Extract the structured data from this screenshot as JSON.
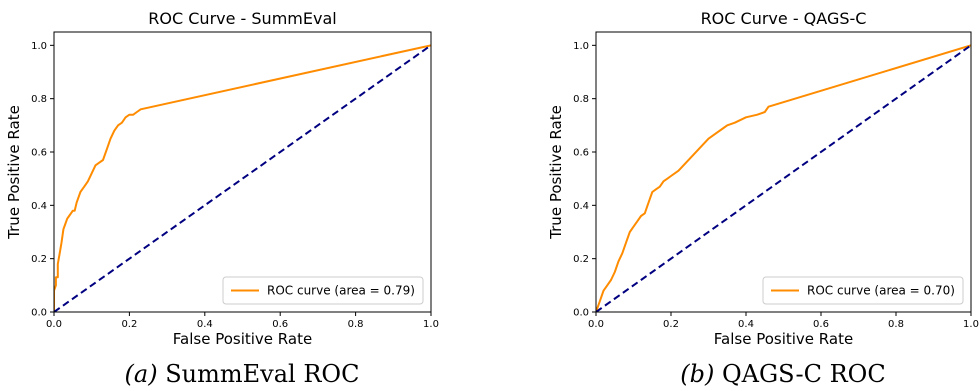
{
  "chart_data": [
    {
      "type": "line",
      "title": "ROC Curve - SummEval",
      "xlabel": "False Positive Rate",
      "ylabel": "True Positive Rate",
      "xlim": [
        0.0,
        1.0
      ],
      "ylim": [
        0.0,
        1.05
      ],
      "xticks": [
        "0.0",
        "0.2",
        "0.4",
        "0.6",
        "0.8",
        "1.0"
      ],
      "yticks": [
        "0.0",
        "0.2",
        "0.4",
        "0.6",
        "0.8",
        "1.0"
      ],
      "legend": {
        "position": "lower-right",
        "entry": "ROC curve (area = 0.79)"
      },
      "grid": false,
      "caption_letter": "(a)",
      "caption_text": "SummEval ROC",
      "colors": {
        "roc": "#ff8c00",
        "diagonal": "#000080"
      },
      "series": [
        {
          "name": "ROC curve (area = 0.79)",
          "style": "solid",
          "x": [
            0.0,
            0.0,
            0.005,
            0.005,
            0.01,
            0.01,
            0.015,
            0.02,
            0.025,
            0.03,
            0.035,
            0.04,
            0.045,
            0.05,
            0.055,
            0.06,
            0.07,
            0.075,
            0.08,
            0.09,
            0.1,
            0.11,
            0.12,
            0.13,
            0.14,
            0.15,
            0.16,
            0.17,
            0.18,
            0.19,
            0.2,
            0.21,
            0.22,
            0.23,
            1.0
          ],
          "y": [
            0.0,
            0.08,
            0.1,
            0.13,
            0.13,
            0.18,
            0.22,
            0.26,
            0.31,
            0.33,
            0.35,
            0.36,
            0.37,
            0.38,
            0.38,
            0.41,
            0.45,
            0.46,
            0.47,
            0.49,
            0.52,
            0.55,
            0.56,
            0.57,
            0.61,
            0.65,
            0.68,
            0.7,
            0.71,
            0.73,
            0.74,
            0.74,
            0.75,
            0.76,
            1.0
          ]
        },
        {
          "name": "",
          "style": "dashed",
          "x": [
            0.0,
            1.0
          ],
          "y": [
            0.0,
            1.0
          ]
        }
      ]
    },
    {
      "type": "line",
      "title": "ROC Curve - QAGS-C",
      "xlabel": "False Positive Rate",
      "ylabel": "True Positive Rate",
      "xlim": [
        0.0,
        1.0
      ],
      "ylim": [
        0.0,
        1.05
      ],
      "xticks": [
        "0.0",
        "0.2",
        "0.4",
        "0.6",
        "0.8",
        "1.0"
      ],
      "yticks": [
        "0.0",
        "0.2",
        "0.4",
        "0.6",
        "0.8",
        "1.0"
      ],
      "legend": {
        "position": "lower-right",
        "entry": "ROC curve (area = 0.70)"
      },
      "grid": false,
      "caption_letter": "(b)",
      "caption_text": "QAGS-C ROC",
      "colors": {
        "roc": "#ff8c00",
        "diagonal": "#000080"
      },
      "series": [
        {
          "name": "ROC curve (area = 0.70)",
          "style": "solid",
          "x": [
            0.0,
            0.01,
            0.02,
            0.03,
            0.04,
            0.05,
            0.06,
            0.07,
            0.08,
            0.09,
            0.1,
            0.11,
            0.12,
            0.13,
            0.14,
            0.15,
            0.16,
            0.17,
            0.18,
            0.19,
            0.2,
            0.22,
            0.24,
            0.26,
            0.28,
            0.3,
            0.32,
            0.34,
            0.35,
            0.37,
            0.4,
            0.43,
            0.45,
            0.46,
            1.0
          ],
          "y": [
            0.0,
            0.04,
            0.08,
            0.1,
            0.12,
            0.15,
            0.19,
            0.22,
            0.26,
            0.3,
            0.32,
            0.34,
            0.36,
            0.37,
            0.41,
            0.45,
            0.46,
            0.47,
            0.49,
            0.5,
            0.51,
            0.53,
            0.56,
            0.59,
            0.62,
            0.65,
            0.67,
            0.69,
            0.7,
            0.71,
            0.73,
            0.74,
            0.75,
            0.77,
            1.0
          ]
        },
        {
          "name": "",
          "style": "dashed",
          "x": [
            0.0,
            1.0
          ],
          "y": [
            0.0,
            1.0
          ]
        }
      ]
    }
  ]
}
